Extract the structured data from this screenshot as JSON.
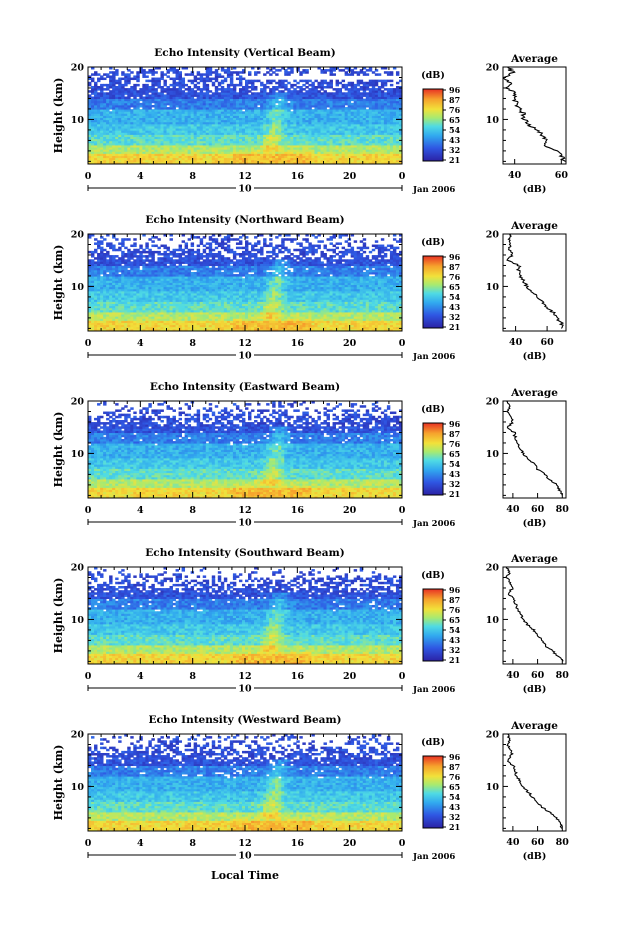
{
  "figure": {
    "xlabel": "Local Time",
    "colorbar_unit": "(dB)",
    "colorbar_ticks": [
      "96",
      "87",
      "76",
      "65",
      "54",
      "43",
      "32",
      "21"
    ],
    "date_label": "Jan 2006",
    "day_label": "10",
    "average_title": "Average",
    "average_xlabel": "(dB)"
  },
  "chart_data": [
    {
      "type": "heatmap",
      "title": "Echo Intensity (Vertical Beam)",
      "ylabel": "Height (km)",
      "xlim": [
        0,
        24
      ],
      "ylim": [
        1.5,
        20
      ],
      "x_ticks": [
        "0",
        "4",
        "8",
        "12",
        "16",
        "20",
        "0"
      ],
      "y_ticks": [
        "20",
        "10"
      ],
      "colorbar_ticks": [
        "96",
        "87",
        "76",
        "65",
        "54",
        "43",
        "32",
        "21"
      ],
      "ylim_colorbar": [
        21,
        96
      ],
      "average_profile": {
        "title": "Average",
        "xlabel": "(dB)",
        "x_ticks": [
          "40",
          "60"
        ],
        "xlim": [
          35,
          62
        ],
        "ylim": [
          1.5,
          20
        ],
        "height": [
          2,
          3,
          4,
          5,
          6,
          7,
          8,
          9,
          10,
          11,
          12,
          13,
          14,
          15,
          16,
          17,
          18,
          19,
          20
        ],
        "value": [
          61,
          60,
          58,
          53,
          54,
          52,
          50,
          46,
          44,
          44,
          42,
          41,
          40,
          40,
          37,
          38,
          36,
          39,
          37
        ]
      }
    },
    {
      "type": "heatmap",
      "title": "Echo Intensity (Northward Beam)",
      "ylabel": "Height (km)",
      "xlim": [
        0,
        24
      ],
      "ylim": [
        1.5,
        20
      ],
      "x_ticks": [
        "0",
        "4",
        "8",
        "12",
        "16",
        "20",
        "0"
      ],
      "y_ticks": [
        "20",
        "10"
      ],
      "colorbar_ticks": [
        "96",
        "87",
        "76",
        "65",
        "54",
        "43",
        "32",
        "21"
      ],
      "ylim_colorbar": [
        21,
        96
      ],
      "average_profile": {
        "title": "Average",
        "xlabel": "(dB)",
        "x_ticks": [
          "40",
          "60"
        ],
        "xlim": [
          32,
          72
        ],
        "ylim": [
          1.5,
          20
        ],
        "height": [
          2,
          3,
          4,
          5,
          6,
          7,
          8,
          9,
          10,
          11,
          12,
          13,
          14,
          15,
          16,
          17,
          18,
          19,
          20
        ],
        "value": [
          70,
          69,
          66,
          64,
          60,
          57,
          54,
          50,
          47,
          45,
          43,
          42,
          42,
          35,
          38,
          36,
          37,
          36,
          37
        ]
      }
    },
    {
      "type": "heatmap",
      "title": "Echo Intensity (Eastward Beam)",
      "ylabel": "Height (km)",
      "xlim": [
        0,
        24
      ],
      "ylim": [
        1.5,
        20
      ],
      "x_ticks": [
        "0",
        "4",
        "8",
        "12",
        "16",
        "20",
        "0"
      ],
      "y_ticks": [
        "20",
        "10"
      ],
      "colorbar_ticks": [
        "96",
        "87",
        "76",
        "65",
        "54",
        "43",
        "32",
        "21"
      ],
      "ylim_colorbar": [
        21,
        96
      ],
      "average_profile": {
        "title": "Average",
        "xlabel": "(dB)",
        "x_ticks": [
          "40",
          "60",
          "80"
        ],
        "xlim": [
          32,
          83
        ],
        "ylim": [
          1.5,
          20
        ],
        "height": [
          2,
          3,
          4,
          5,
          6,
          7,
          8,
          9,
          10,
          11,
          12,
          13,
          14,
          15,
          16,
          17,
          18,
          19,
          20
        ],
        "value": [
          80,
          78,
          76,
          70,
          66,
          60,
          58,
          52,
          48,
          46,
          44,
          42,
          41,
          36,
          40,
          38,
          36,
          37,
          35
        ]
      }
    },
    {
      "type": "heatmap",
      "title": "Echo Intensity (Southward Beam)",
      "ylabel": "Height (km)",
      "xlim": [
        0,
        24
      ],
      "ylim": [
        1.5,
        20
      ],
      "x_ticks": [
        "0",
        "4",
        "8",
        "12",
        "16",
        "20",
        "0"
      ],
      "y_ticks": [
        "20",
        "10"
      ],
      "colorbar_ticks": [
        "96",
        "87",
        "76",
        "65",
        "54",
        "43",
        "32",
        "21"
      ],
      "ylim_colorbar": [
        21,
        96
      ],
      "average_profile": {
        "title": "Average",
        "xlabel": "(dB)",
        "x_ticks": [
          "40",
          "60",
          "80"
        ],
        "xlim": [
          32,
          83
        ],
        "ylim": [
          1.5,
          20
        ],
        "height": [
          2,
          3,
          4,
          5,
          6,
          7,
          8,
          9,
          10,
          11,
          12,
          13,
          14,
          15,
          16,
          17,
          18,
          19,
          20
        ],
        "value": [
          80,
          77,
          72,
          66,
          64,
          60,
          57,
          52,
          48,
          46,
          44,
          42,
          40,
          36,
          40,
          38,
          35,
          37,
          35
        ]
      }
    },
    {
      "type": "heatmap",
      "title": "Echo Intensity (Westward Beam)",
      "ylabel": "Height (km)",
      "xlim": [
        0,
        24
      ],
      "ylim": [
        1.5,
        20
      ],
      "x_ticks": [
        "0",
        "4",
        "8",
        "12",
        "16",
        "20",
        "0"
      ],
      "y_ticks": [
        "20",
        "10"
      ],
      "colorbar_ticks": [
        "96",
        "87",
        "76",
        "65",
        "54",
        "43",
        "32",
        "21"
      ],
      "ylim_colorbar": [
        21,
        96
      ],
      "average_profile": {
        "title": "Average",
        "xlabel": "(dB)",
        "x_ticks": [
          "40",
          "60",
          "80"
        ],
        "xlim": [
          32,
          83
        ],
        "ylim": [
          1.5,
          20
        ],
        "height": [
          2,
          3,
          4,
          5,
          6,
          7,
          8,
          9,
          10,
          11,
          12,
          13,
          14,
          15,
          16,
          17,
          18,
          19,
          20
        ],
        "value": [
          80,
          78,
          75,
          70,
          64,
          60,
          56,
          52,
          48,
          46,
          43,
          42,
          40,
          36,
          39,
          38,
          36,
          37,
          36
        ]
      }
    }
  ]
}
